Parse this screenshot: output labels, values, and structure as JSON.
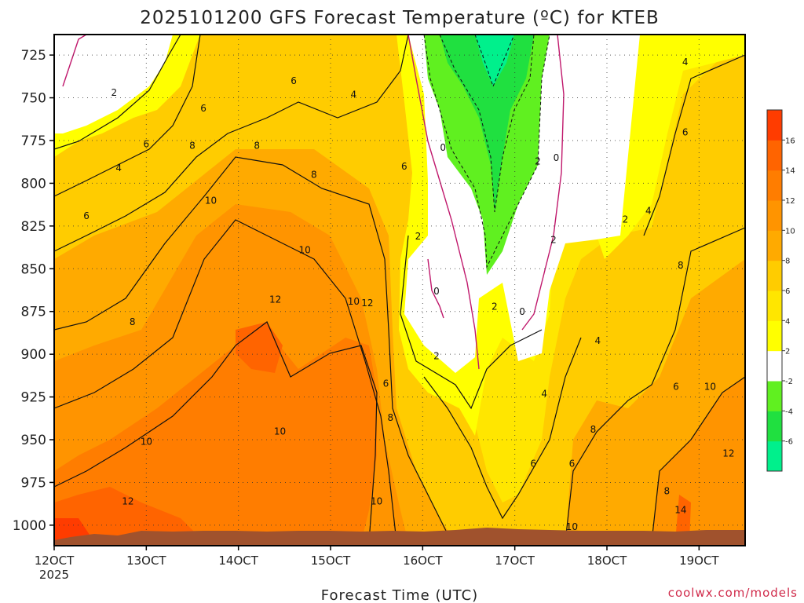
{
  "chart_data": {
    "type": "heatmap",
    "title": "2025101200 GFS Forecast Temperature (ºC) for KTEB",
    "xlabel": "Forecast Time (UTC)",
    "ylabel": "",
    "credit": "coolwx.com/models",
    "y_ticks": [
      725,
      750,
      775,
      800,
      825,
      850,
      875,
      900,
      925,
      950,
      975,
      1000
    ],
    "ylim": [
      1012,
      713
    ],
    "y_scale": "linear-inverted",
    "x_ticks": [
      {
        "label": "12OCT",
        "sublabel": "2025",
        "day": 12
      },
      {
        "label": "13OCT",
        "day": 13
      },
      {
        "label": "14OCT",
        "day": 14
      },
      {
        "label": "15OCT",
        "day": 15
      },
      {
        "label": "16OCT",
        "day": 16
      },
      {
        "label": "17OCT",
        "day": 17
      },
      {
        "label": "18OCT",
        "day": 18
      },
      {
        "label": "19OCT",
        "day": 19
      }
    ],
    "xlim": [
      12.0,
      19.5
    ],
    "grid": true,
    "colorbar": {
      "levels": [
        -8,
        -6,
        -4,
        -2,
        2,
        4,
        6,
        8,
        10,
        12,
        14,
        16,
        18
      ],
      "labels": [
        -6,
        -4,
        -2,
        2,
        4,
        6,
        8,
        10,
        12,
        14,
        16
      ],
      "colors": [
        "#00f08c",
        "#20e040",
        "#60f020",
        "#ffffff",
        "#ffff00",
        "#ffe600",
        "#ffcc00",
        "#ffaa00",
        "#ff9400",
        "#ff7d00",
        "#ff6400",
        "#ff3c00"
      ]
    },
    "contour_levels": [
      -6,
      -4,
      -2,
      0,
      2,
      4,
      6,
      8,
      10,
      12,
      14,
      16
    ],
    "values_at_1000hPa_by_day": [
      {
        "day": 12.0,
        "temp_c": 15
      },
      {
        "day": 13.0,
        "temp_c": 13
      },
      {
        "day": 14.0,
        "temp_c": 12
      },
      {
        "day": 15.0,
        "temp_c": 12
      },
      {
        "day": 16.0,
        "temp_c": 10
      },
      {
        "day": 16.7,
        "temp_c": 9
      },
      {
        "day": 17.5,
        "temp_c": 10
      },
      {
        "day": 18.0,
        "temp_c": 11
      },
      {
        "day": 19.0,
        "temp_c": 13
      }
    ],
    "contour_labels": [
      {
        "text": "2",
        "day": 12.65,
        "p": 748
      },
      {
        "text": "6",
        "day": 12.35,
        "p": 820
      },
      {
        "text": "4",
        "day": 12.7,
        "p": 792
      },
      {
        "text": "6",
        "day": 13.0,
        "p": 778
      },
      {
        "text": "8",
        "day": 12.85,
        "p": 882
      },
      {
        "text": "10",
        "day": 13.0,
        "p": 952
      },
      {
        "text": "12",
        "day": 12.8,
        "p": 987
      },
      {
        "text": "6",
        "day": 13.62,
        "p": 757
      },
      {
        "text": "8",
        "day": 13.5,
        "p": 779
      },
      {
        "text": "10",
        "day": 13.7,
        "p": 811
      },
      {
        "text": "8",
        "day": 14.2,
        "p": 779
      },
      {
        "text": "6",
        "day": 14.6,
        "p": 741
      },
      {
        "text": "4",
        "day": 15.25,
        "p": 749
      },
      {
        "text": "8",
        "day": 14.82,
        "p": 796
      },
      {
        "text": "10",
        "day": 14.72,
        "p": 840
      },
      {
        "text": "12",
        "day": 14.4,
        "p": 869
      },
      {
        "text": "10",
        "day": 14.45,
        "p": 946
      },
      {
        "text": "10",
        "day": 15.25,
        "p": 870
      },
      {
        "text": "12",
        "day": 15.4,
        "p": 871
      },
      {
        "text": "6",
        "day": 15.8,
        "p": 791
      },
      {
        "text": "2",
        "day": 15.95,
        "p": 832
      },
      {
        "text": "6",
        "day": 15.6,
        "p": 918
      },
      {
        "text": "8",
        "day": 15.65,
        "p": 938
      },
      {
        "text": "10",
        "day": 15.5,
        "p": 987
      },
      {
        "text": "0",
        "day": 16.22,
        "p": 780
      },
      {
        "text": "0",
        "day": 16.15,
        "p": 864
      },
      {
        "text": "2",
        "day": 16.15,
        "p": 902
      },
      {
        "text": "2",
        "day": 16.78,
        "p": 873
      },
      {
        "text": "0",
        "day": 17.08,
        "p": 876
      },
      {
        "text": "2",
        "day": 17.25,
        "p": 788
      },
      {
        "text": "0",
        "day": 17.45,
        "p": 786
      },
      {
        "text": "2",
        "day": 17.42,
        "p": 834
      },
      {
        "text": "4",
        "day": 17.32,
        "p": 924
      },
      {
        "text": "6",
        "day": 17.2,
        "p": 965
      },
      {
        "text": "6",
        "day": 17.62,
        "p": 965
      },
      {
        "text": "8",
        "day": 17.85,
        "p": 945
      },
      {
        "text": "4",
        "day": 17.9,
        "p": 893
      },
      {
        "text": "10",
        "day": 17.62,
        "p": 1002
      },
      {
        "text": "2",
        "day": 18.2,
        "p": 822
      },
      {
        "text": "4",
        "day": 18.45,
        "p": 817
      },
      {
        "text": "6",
        "day": 18.75,
        "p": 920
      },
      {
        "text": "8",
        "day": 18.65,
        "p": 981
      },
      {
        "text": "14",
        "day": 18.8,
        "p": 992
      },
      {
        "text": "10",
        "day": 19.12,
        "p": 920
      },
      {
        "text": "12",
        "day": 19.32,
        "p": 959
      },
      {
        "text": "4",
        "day": 18.85,
        "p": 730
      },
      {
        "text": "6",
        "day": 18.85,
        "p": 771
      },
      {
        "text": "8",
        "day": 18.8,
        "p": 849
      }
    ]
  },
  "colors": {
    "terrain": "#a0522d",
    "zero_contour": "#c0186c",
    "contour": "#111111",
    "credit": "#d02a4a"
  }
}
